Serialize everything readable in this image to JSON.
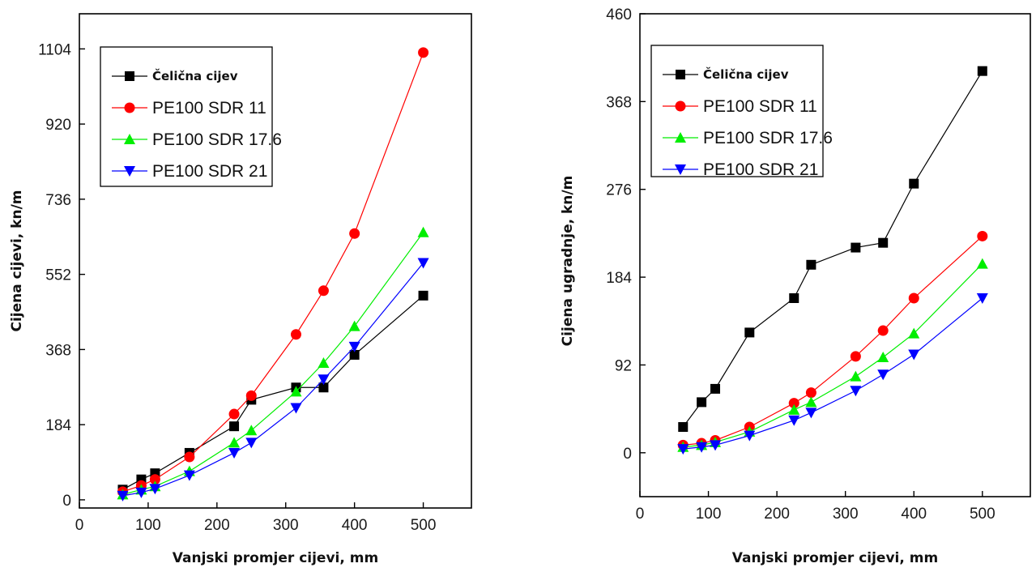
{
  "colors": {
    "steel": "#000000",
    "sdr11": "#ff0000",
    "sdr176": "#00ee00",
    "sdr21": "#0000ff"
  },
  "chart_data": [
    {
      "type": "line",
      "xlabel": "Vanjski promjer cijevi, mm",
      "ylabel": "Cijena cijevi, kn/m",
      "xlim": [
        0,
        570
      ],
      "ylim": [
        -20,
        1190
      ],
      "xticks": [
        0,
        100,
        200,
        300,
        400,
        500
      ],
      "yticks": [
        0,
        184,
        368,
        552,
        736,
        920,
        1104
      ],
      "legend_position": "top-left",
      "x": [
        63,
        90,
        110,
        160,
        225,
        250,
        315,
        355,
        400,
        500
      ],
      "series": [
        {
          "name": "Čelična cijev",
          "marker": "square",
          "color": "#000000",
          "values": [
            25,
            50,
            65,
            115,
            180,
            245,
            275,
            275,
            355,
            500
          ]
        },
        {
          "name": "PE100 SDR 11",
          "marker": "circle",
          "color": "#ff0000",
          "values": [
            20,
            35,
            50,
            105,
            210,
            255,
            405,
            512,
            652,
            1095
          ]
        },
        {
          "name": "PE100 SDR 17.6",
          "marker": "triangle-up",
          "color": "#00ee00",
          "values": [
            13,
            25,
            33,
            70,
            140,
            170,
            265,
            335,
            425,
            655
          ]
        },
        {
          "name": "PE100 SDR  21",
          "marker": "triangle-down",
          "color": "#0000ff",
          "values": [
            10,
            18,
            27,
            60,
            115,
            140,
            225,
            295,
            375,
            580
          ]
        }
      ]
    },
    {
      "type": "line",
      "xlabel": "Vanjski promjer cijevi, mm",
      "ylabel": "Cijena ugradnje, kn/m",
      "xlim": [
        0,
        570
      ],
      "ylim": [
        -46,
        460
      ],
      "xticks": [
        0,
        100,
        200,
        300,
        400,
        500
      ],
      "yticks": [
        0,
        92,
        184,
        276,
        368,
        460
      ],
      "legend_position": "top-left",
      "x": [
        63,
        90,
        110,
        160,
        225,
        250,
        315,
        355,
        400,
        500
      ],
      "series": [
        {
          "name": "Čelična cijev",
          "marker": "square",
          "color": "#000000",
          "values": [
            27,
            53,
            67,
            126,
            162,
            197,
            215,
            220,
            282,
            400
          ]
        },
        {
          "name": "PE100 SDR 11",
          "marker": "circle",
          "color": "#ff0000",
          "values": [
            8,
            10,
            13,
            27,
            52,
            63,
            101,
            128,
            162,
            227
          ]
        },
        {
          "name": "PE100 SDR 17.6",
          "marker": "triangle-up",
          "color": "#00ee00",
          "values": [
            6,
            8,
            11,
            22,
            45,
            53,
            80,
            100,
            125,
            198
          ]
        },
        {
          "name": "PE100 SDR 21",
          "marker": "triangle-down",
          "color": "#0000ff",
          "values": [
            4,
            6,
            8,
            18,
            34,
            42,
            65,
            82,
            103,
            162
          ]
        }
      ]
    }
  ]
}
